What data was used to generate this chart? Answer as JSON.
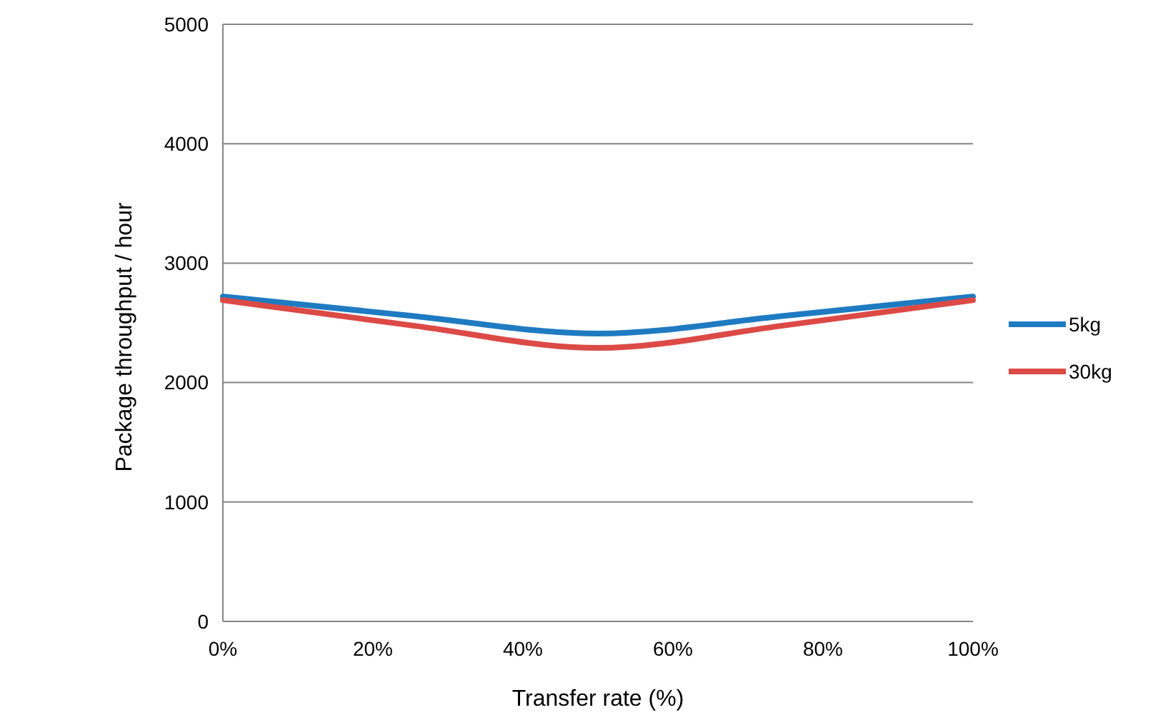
{
  "chart_data": {
    "type": "line",
    "xlabel": "Transfer rate (%)",
    "ylabel": "Package throughput  / hour",
    "x": [
      0,
      25,
      50,
      75,
      100
    ],
    "series": [
      {
        "name": "5kg",
        "color": "#1f7bc1",
        "values": [
          2720,
          2560,
          2410,
          2560,
          2720
        ]
      },
      {
        "name": "30kg",
        "color": "#dc4a46",
        "values": [
          2690,
          2480,
          2290,
          2480,
          2690
        ]
      }
    ],
    "xlim": [
      0,
      100
    ],
    "xticks": [
      {
        "value": 0,
        "label": "0%"
      },
      {
        "value": 20,
        "label": "20%"
      },
      {
        "value": 40,
        "label": "40%"
      },
      {
        "value": 60,
        "label": "60%"
      },
      {
        "value": 80,
        "label": "80%"
      },
      {
        "value": 100,
        "label": "100%"
      }
    ],
    "ylim": [
      0,
      5000
    ],
    "yticks": [
      0,
      1000,
      2000,
      3000,
      4000,
      5000
    ],
    "grid": "y",
    "legend": "right",
    "marker": "none",
    "line_style": "solid"
  }
}
